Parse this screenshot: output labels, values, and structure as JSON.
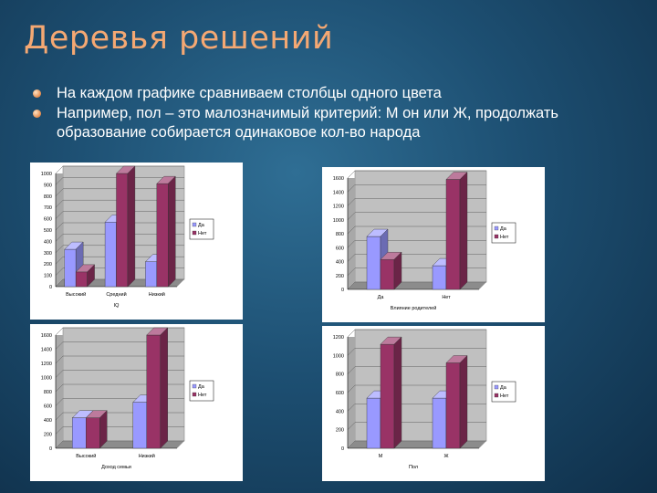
{
  "slide": {
    "title": "Деревья решений",
    "bullets": [
      "На каждом графике сравниваем столбцы одного цвета",
      "Например, пол – это малозначимый критерий: М он или Ж, продолжать образование собирается одинаковое кол-во народа"
    ]
  },
  "colors": {
    "da": "#9999ff",
    "net": "#993366",
    "title": "#f4a873"
  },
  "chart_data": [
    {
      "type": "bar",
      "categories": [
        "Высокий",
        "Средний",
        "Низкий"
      ],
      "series": [
        {
          "name": "Да",
          "values": [
            330,
            570,
            220
          ]
        },
        {
          "name": "Нет",
          "values": [
            130,
            1000,
            910
          ]
        }
      ],
      "xlabel": "IQ",
      "ylim": [
        0,
        1000
      ],
      "yticks": [
        0,
        100,
        200,
        300,
        400,
        500,
        600,
        700,
        800,
        900,
        1000
      ],
      "legend": "right"
    },
    {
      "type": "bar",
      "categories": [
        "Да",
        "Нет"
      ],
      "series": [
        {
          "name": "Да",
          "values": [
            760,
            340
          ]
        },
        {
          "name": "Нет",
          "values": [
            430,
            1580
          ]
        }
      ],
      "xlabel": "Влияние родителей",
      "ylim": [
        0,
        1600
      ],
      "yticks": [
        0,
        200,
        400,
        600,
        800,
        1000,
        1200,
        1400,
        1600
      ],
      "legend": "right"
    },
    {
      "type": "bar",
      "categories": [
        "Высокий",
        "Низкий"
      ],
      "series": [
        {
          "name": "Да",
          "values": [
            430,
            650
          ]
        },
        {
          "name": "Нет",
          "values": [
            430,
            1600
          ]
        }
      ],
      "xlabel": "Доход семьи",
      "ylim": [
        0,
        1600
      ],
      "yticks": [
        0,
        200,
        400,
        600,
        800,
        1000,
        1200,
        1400,
        1600
      ],
      "legend": "right"
    },
    {
      "type": "bar",
      "categories": [
        "М",
        "Ж"
      ],
      "series": [
        {
          "name": "Да",
          "values": [
            540,
            540
          ]
        },
        {
          "name": "Нет",
          "values": [
            1120,
            920
          ]
        }
      ],
      "xlabel": "Пол",
      "ylim": [
        0,
        1200
      ],
      "yticks": [
        0,
        200,
        400,
        600,
        800,
        1000,
        1200
      ],
      "legend": "right"
    }
  ]
}
